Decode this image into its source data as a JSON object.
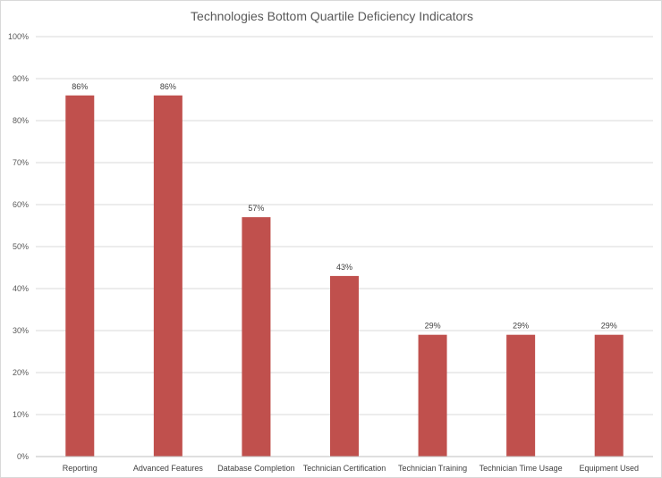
{
  "chart_data": {
    "type": "bar",
    "title": "Technologies Bottom Quartile Deficiency Indicators",
    "categories": [
      "Reporting",
      "Advanced Features",
      "Database Completion",
      "Technician Certification",
      "Technician Training",
      "Technician Time Usage",
      "Equipment Used"
    ],
    "values": [
      86,
      86,
      57,
      43,
      29,
      29,
      29
    ],
    "data_labels": [
      "86%",
      "86%",
      "57%",
      "43%",
      "29%",
      "29%",
      "29%"
    ],
    "yticks": [
      "0%",
      "10%",
      "20%",
      "30%",
      "40%",
      "50%",
      "60%",
      "70%",
      "80%",
      "90%",
      "100%"
    ],
    "ylim": [
      0,
      100
    ],
    "xlabel": "",
    "ylabel": "",
    "grid": true,
    "legend": "none",
    "bar_color": "#c0504d"
  }
}
